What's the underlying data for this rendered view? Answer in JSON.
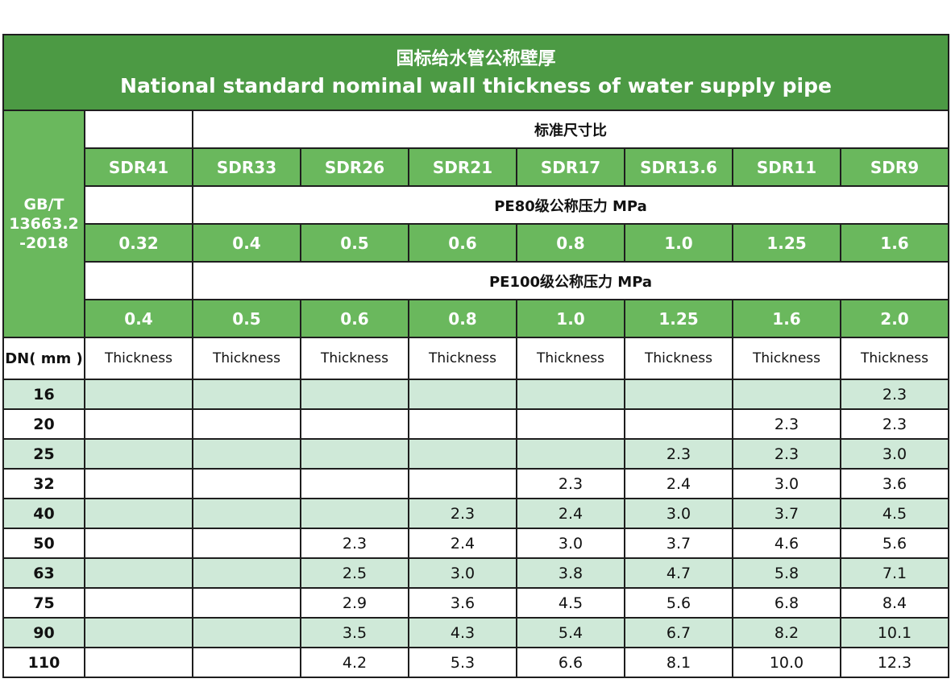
{
  "title": {
    "cn": "国标给水管公称壁厚",
    "en": "National standard nominal wall thickness of water supply pipe"
  },
  "standard_code": "GB/T 13663.2 -2018",
  "sdr_label": "标准尺寸比",
  "sdr": [
    "SDR41",
    "SDR33",
    "SDR26",
    "SDR21",
    "SDR17",
    "SDR13.6",
    "SDR11",
    "SDR9"
  ],
  "pe80_label": "PE80级公称压力   MPa",
  "pe80": [
    "0.32",
    "0.4",
    "0.5",
    "0.6",
    "0.8",
    "1.0",
    "1.25",
    "1.6"
  ],
  "pe100_label": "PE100级公称压力   MPa",
  "pe100": [
    "0.4",
    "0.5",
    "0.6",
    "0.8",
    "1.0",
    "1.25",
    "1.6",
    "2.0"
  ],
  "dn_header": "DN( mm )",
  "col_label": "Thickness",
  "rows": [
    {
      "dn": "16",
      "v": [
        "",
        "",
        "",
        "",
        "",
        "",
        "",
        "2.3"
      ]
    },
    {
      "dn": "20",
      "v": [
        "",
        "",
        "",
        "",
        "",
        "",
        "2.3",
        "2.3"
      ]
    },
    {
      "dn": "25",
      "v": [
        "",
        "",
        "",
        "",
        "",
        "2.3",
        "2.3",
        "3.0"
      ]
    },
    {
      "dn": "32",
      "v": [
        "",
        "",
        "",
        "",
        "2.3",
        "2.4",
        "3.0",
        "3.6"
      ]
    },
    {
      "dn": "40",
      "v": [
        "",
        "",
        "",
        "2.3",
        "2.4",
        "3.0",
        "3.7",
        "4.5"
      ]
    },
    {
      "dn": "50",
      "v": [
        "",
        "",
        "2.3",
        "2.4",
        "3.0",
        "3.7",
        "4.6",
        "5.6"
      ]
    },
    {
      "dn": "63",
      "v": [
        "",
        "",
        "2.5",
        "3.0",
        "3.8",
        "4.7",
        "5.8",
        "7.1"
      ]
    },
    {
      "dn": "75",
      "v": [
        "",
        "",
        "2.9",
        "3.6",
        "4.5",
        "5.6",
        "6.8",
        "8.4"
      ]
    },
    {
      "dn": "90",
      "v": [
        "",
        "",
        "3.5",
        "4.3",
        "5.4",
        "6.7",
        "8.2",
        "10.1"
      ]
    },
    {
      "dn": "110",
      "v": [
        "",
        "",
        "4.2",
        "5.3",
        "6.6",
        "8.1",
        "10.0",
        "12.3"
      ]
    }
  ],
  "colors": {
    "title_bg": "#4c9a44",
    "header_green": "#6ab85d",
    "stripe": "#cfe9d8",
    "border": "#1e1e1e"
  }
}
